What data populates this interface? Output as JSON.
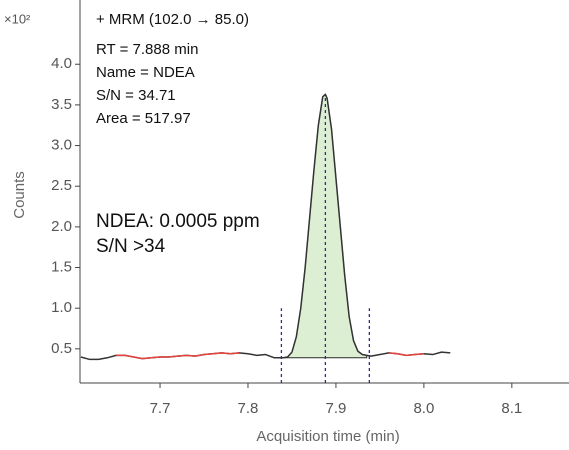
{
  "chart_data": {
    "type": "line",
    "title": "+ MRM (102.0 → 85.0)",
    "annotations": [
      "RT = 7.888 min",
      "Name = NDEA",
      "S/N = 34.71",
      "Area = 517.97"
    ],
    "callout": [
      "NDEA: 0.0005 ppm",
      "S/N >34"
    ],
    "y_multiplier": "×10²",
    "y_label": "Counts",
    "x_label": "Acquisition time (min)",
    "xlim": [
      7.609,
      8.165
    ],
    "ylim": [
      0.08,
      4.79
    ],
    "xticks": [
      7.7,
      7.8,
      7.9,
      {
        "value": 8.0,
        "label": "8.0"
      },
      8.1
    ],
    "yticks": [
      0.5,
      {
        "value": 1.0,
        "label": "1.0"
      },
      1.5,
      {
        "value": 2.0,
        "label": "2.0"
      },
      2.5,
      {
        "value": 3.0,
        "label": "3.0"
      },
      3.5,
      {
        "value": 4.0,
        "label": "4.0"
      }
    ],
    "x": [
      7.61,
      7.62,
      7.63,
      7.64,
      7.65,
      7.66,
      7.67,
      7.68,
      7.69,
      7.7,
      7.71,
      7.72,
      7.73,
      7.74,
      7.75,
      7.76,
      7.77,
      7.78,
      7.79,
      7.8,
      7.81,
      7.82,
      7.83,
      7.84,
      7.845,
      7.85,
      7.855,
      7.86,
      7.865,
      7.87,
      7.875,
      7.88,
      7.885,
      7.888,
      7.89,
      7.895,
      7.9,
      7.905,
      7.91,
      7.915,
      7.92,
      7.925,
      7.93,
      7.935,
      7.94,
      7.95,
      7.96,
      7.97,
      7.98,
      7.99,
      8.0,
      8.01,
      8.02,
      8.03
    ],
    "series": [
      {
        "color": "#333333",
        "values": [
          0.4,
          0.37,
          0.37,
          0.39,
          0.42,
          0.42,
          0.4,
          0.38,
          0.39,
          0.4,
          0.4,
          0.41,
          0.42,
          0.41,
          0.43,
          0.44,
          0.45,
          0.44,
          0.45,
          0.44,
          0.42,
          0.43,
          0.39,
          0.39,
          0.4,
          0.46,
          0.65,
          1.0,
          1.5,
          2.1,
          2.7,
          3.25,
          3.6,
          3.63,
          3.58,
          3.2,
          2.6,
          2.0,
          1.4,
          0.9,
          0.6,
          0.47,
          0.43,
          0.42,
          0.41,
          0.43,
          0.45,
          0.44,
          0.42,
          0.43,
          0.44,
          0.43,
          0.46,
          0.45
        ]
      },
      {
        "color": "#e8433e",
        "values": [
          null,
          null,
          null,
          null,
          0.42,
          0.42,
          0.4,
          0.38,
          0.39,
          0.4,
          0.4,
          0.41,
          0.42,
          0.41,
          0.43,
          0.44,
          0.45,
          0.44,
          0.45,
          null,
          null,
          null,
          null,
          null,
          null,
          null,
          null,
          null,
          null,
          null,
          null,
          null,
          null,
          null,
          null,
          null,
          null,
          null,
          null,
          null,
          null,
          null,
          null,
          null,
          null,
          null,
          0.45,
          0.44,
          0.42,
          0.43,
          0.44,
          null,
          null,
          null
        ]
      }
    ],
    "markers": [
      7.838,
      7.888,
      7.938
    ],
    "marker_color": "#2e2e8a",
    "peak_fill": "#dcefd3"
  }
}
